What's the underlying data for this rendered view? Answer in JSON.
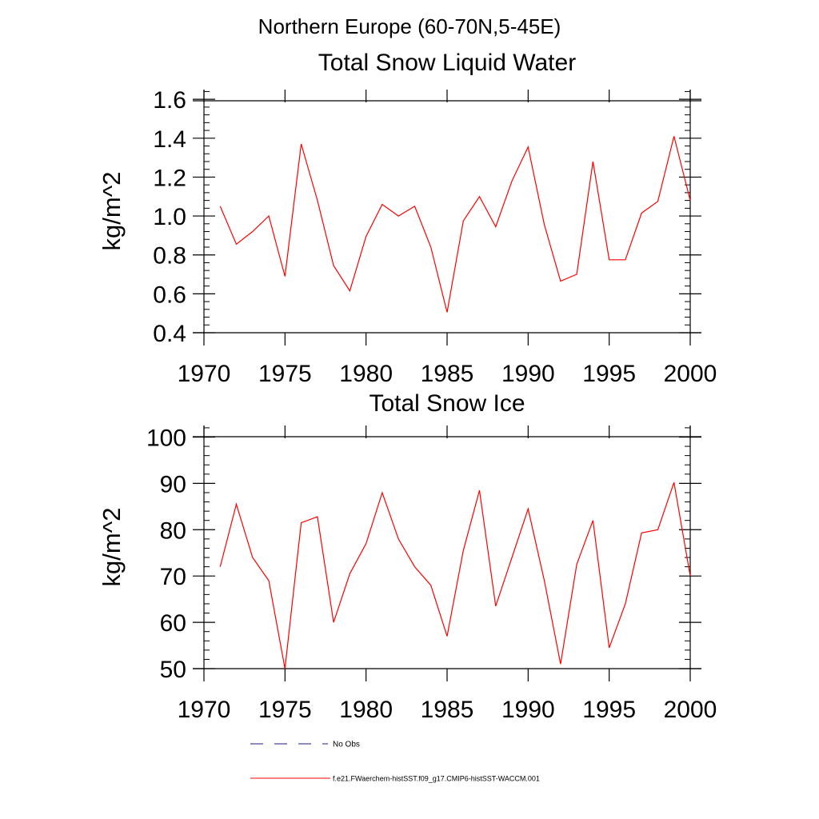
{
  "page_title": "Northern Europe (60-70N,5-45E)",
  "colors": {
    "model_line": "#ff0000",
    "obs_line": "#1a1a80",
    "axes": "#000000"
  },
  "legend": [
    {
      "label": "No Obs",
      "style": "dashed",
      "color": "#1a1a80"
    },
    {
      "label": "f.e21.FWaerchem-histSST.f09_g17.CMIP6-histSST-WACCM.001",
      "style": "solid",
      "color": "#ff0000"
    }
  ],
  "chart_data": [
    {
      "type": "line",
      "title": "Total Snow Liquid Water",
      "xlabel": "",
      "ylabel": "kg/m^2",
      "xlim": [
        1970,
        2000
      ],
      "ylim": [
        0.4,
        1.65
      ],
      "xticks": [
        1970,
        1975,
        1980,
        1985,
        1990,
        1995,
        2000
      ],
      "xtick_labels": [
        "1970",
        "1975",
        "1980",
        "1985",
        "1990",
        "1995",
        "2000"
      ],
      "yticks": [
        0.4,
        0.6,
        0.8,
        1.0,
        1.2,
        1.4,
        1.6
      ],
      "ytick_labels": [
        "0.4",
        "0.6",
        "0.8",
        "1.0",
        "1.2",
        "1.4",
        "1.6"
      ],
      "grid": false,
      "series": [
        {
          "name": "f.e21.FWaerchem-histSST.f09_g17.CMIP6-histSST-WACCM.001",
          "x": [
            1971,
            1972,
            1973,
            1974,
            1975,
            1976,
            1977,
            1978,
            1979,
            1980,
            1981,
            1982,
            1983,
            1984,
            1985,
            1986,
            1987,
            1988,
            1989,
            1990,
            1991,
            1992,
            1993,
            1994,
            1995,
            1996,
            1997,
            1998,
            1999,
            2000
          ],
          "y": [
            1.05,
            0.855,
            0.92,
            1.0,
            0.69,
            1.37,
            1.08,
            0.745,
            0.615,
            0.895,
            1.06,
            1.0,
            1.05,
            0.84,
            0.505,
            0.975,
            1.1,
            0.945,
            1.18,
            1.355,
            0.955,
            0.665,
            0.7,
            1.28,
            0.775,
            0.775,
            1.015,
            1.075,
            1.41,
            1.08
          ]
        }
      ]
    },
    {
      "type": "line",
      "title": "Total Snow Ice",
      "xlabel": "",
      "ylabel": "kg/m^2",
      "xlim": [
        1970,
        2000
      ],
      "ylim": [
        50,
        102.5
      ],
      "xticks": [
        1970,
        1975,
        1980,
        1985,
        1990,
        1995,
        2000
      ],
      "xtick_labels": [
        "1970",
        "1975",
        "1980",
        "1985",
        "1990",
        "1995",
        "2000"
      ],
      "yticks": [
        50,
        60,
        70,
        80,
        90,
        100
      ],
      "ytick_labels": [
        "50",
        "60",
        "70",
        "80",
        "90",
        "100"
      ],
      "grid": false,
      "series": [
        {
          "name": "f.e21.FWaerchem-histSST.f09_g17.CMIP6-histSST-WACCM.001",
          "x": [
            1971,
            1972,
            1973,
            1974,
            1975,
            1976,
            1977,
            1978,
            1979,
            1980,
            1981,
            1982,
            1983,
            1984,
            1985,
            1986,
            1987,
            1988,
            1989,
            1990,
            1991,
            1992,
            1993,
            1994,
            1995,
            1996,
            1997,
            1998,
            1999,
            2000
          ],
          "y": [
            72.0,
            85.5,
            74.0,
            69.0,
            50.0,
            81.5,
            82.8,
            60.0,
            70.5,
            77.0,
            88.0,
            78.0,
            72.0,
            68.0,
            57.0,
            75.5,
            88.5,
            63.5,
            74.0,
            84.5,
            69.0,
            51.0,
            72.5,
            82.0,
            54.5,
            64.0,
            79.3,
            80.0,
            90.2,
            70.0
          ]
        }
      ]
    }
  ]
}
